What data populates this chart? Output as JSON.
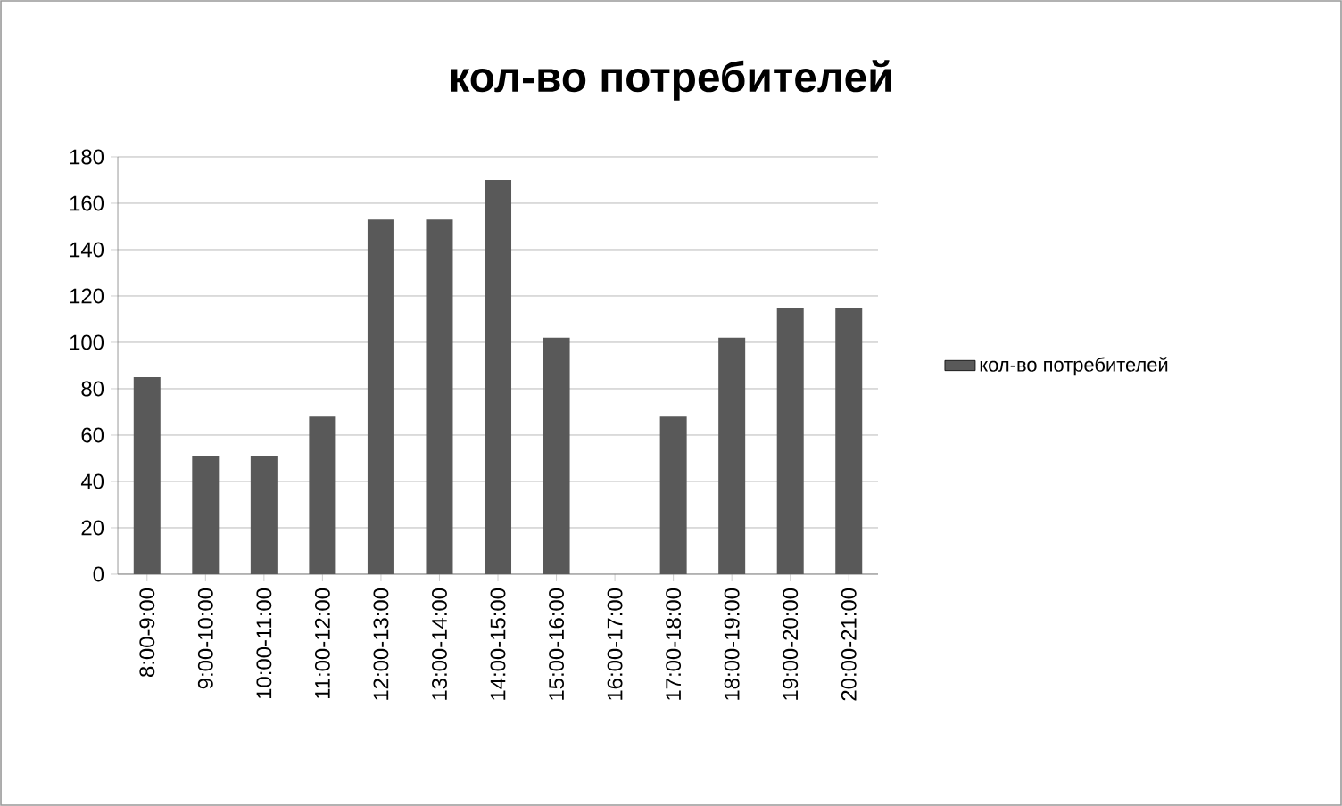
{
  "chart_data": {
    "type": "bar",
    "title": "кол-во потребителей",
    "categories": [
      "8:00-9:00",
      "9:00-10:00",
      "10:00-11:00",
      "11:00-12:00",
      "12:00-13:00",
      "13:00-14:00",
      "14:00-15:00",
      "15:00-16:00",
      "16:00-17:00",
      "17:00-18:00",
      "18:00-19:00",
      "19:00-20:00",
      "20:00-21:00"
    ],
    "series": [
      {
        "name": "кол-во потребителей",
        "color": "#595959",
        "values": [
          85,
          51,
          51,
          68,
          153,
          153,
          170,
          102,
          0,
          68,
          102,
          115,
          115
        ]
      }
    ],
    "ylim": [
      0,
      180
    ],
    "yticks": [
      0,
      20,
      40,
      60,
      80,
      100,
      120,
      140,
      160,
      180
    ],
    "grid": "y",
    "legend": "right"
  }
}
